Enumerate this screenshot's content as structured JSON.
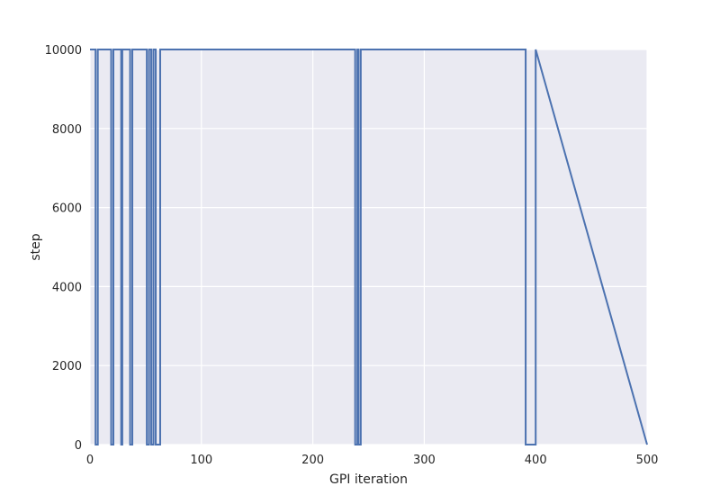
{
  "chart_data": {
    "type": "line",
    "title": "",
    "xlabel": "GPI iteration",
    "ylabel": "step",
    "xlim": [
      0,
      500
    ],
    "ylim": [
      0,
      10000
    ],
    "xticks": [
      0,
      100,
      200,
      300,
      400,
      500
    ],
    "yticks": [
      0,
      2000,
      4000,
      6000,
      8000,
      10000
    ],
    "grid": true,
    "legend": "none",
    "colors": {
      "background": "#EAEAF2",
      "grid": "#FFFFFF",
      "line": "#4C72B0",
      "text": "#262626"
    },
    "series": [
      {
        "x": [
          0,
          5,
          5,
          7,
          7,
          19,
          19,
          21,
          21,
          28,
          28,
          29,
          29,
          36,
          36,
          38,
          38,
          51,
          51,
          53,
          53,
          55,
          55,
          57,
          57,
          59,
          59,
          63,
          63,
          238,
          238,
          240,
          240,
          241,
          241,
          243,
          243,
          391,
          391,
          400,
          400,
          500
        ],
        "y": [
          10000,
          10000,
          0,
          0,
          10000,
          10000,
          0,
          0,
          10000,
          10000,
          0,
          0,
          10000,
          10000,
          0,
          0,
          10000,
          10000,
          0,
          0,
          10000,
          10000,
          0,
          0,
          10000,
          10000,
          0,
          0,
          10000,
          10000,
          0,
          0,
          10000,
          10000,
          0,
          0,
          10000,
          10000,
          0,
          0,
          10000,
          0
        ]
      }
    ]
  }
}
